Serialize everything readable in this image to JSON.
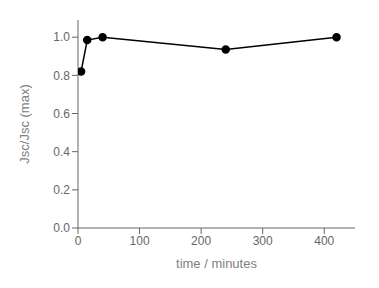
{
  "chart_data": {
    "type": "line",
    "x": [
      5,
      15,
      40,
      240,
      420
    ],
    "values": [
      0.82,
      0.985,
      1.0,
      0.935,
      1.0
    ],
    "xlabel": "time / minutes",
    "ylabel": "Jsc/Jsc (max)",
    "xlim": [
      0,
      450
    ],
    "ylim": [
      0.0,
      1.09
    ],
    "xticks": [
      0,
      100,
      200,
      300,
      400
    ],
    "yticks": [
      0.0,
      0.2,
      0.4,
      0.6,
      0.8,
      1.0
    ],
    "color": "#000000",
    "marker": "circle",
    "grid": false
  }
}
